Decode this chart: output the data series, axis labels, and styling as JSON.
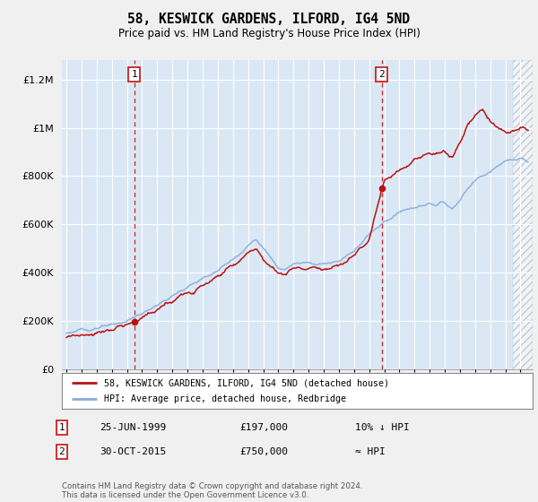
{
  "title": "58, KESWICK GARDENS, ILFORD, IG4 5ND",
  "subtitle": "Price paid vs. HM Land Registry's House Price Index (HPI)",
  "ytick_values": [
    0,
    200000,
    400000,
    600000,
    800000,
    1000000,
    1200000
  ],
  "ylim": [
    0,
    1280000
  ],
  "xlim_start": 1994.7,
  "xlim_end": 2025.8,
  "background_color": "#dae8f5",
  "fig_bg_color": "#f0f0f0",
  "grid_color": "#ffffff",
  "hpi_color": "#88aadd",
  "price_color": "#bb1111",
  "marker1_date": 1999.48,
  "marker1_price": 197000,
  "marker2_date": 2015.83,
  "marker2_price": 750000,
  "legend_label1": "58, KESWICK GARDENS, ILFORD, IG4 5ND (detached house)",
  "legend_label2": "HPI: Average price, detached house, Redbridge",
  "annotation1_label": "25-JUN-1999",
  "annotation1_price": "£197,000",
  "annotation1_rel": "10% ↓ HPI",
  "annotation2_label": "30-OCT-2015",
  "annotation2_price": "£750,000",
  "annotation2_rel": "≈ HPI",
  "footer": "Contains HM Land Registry data © Crown copyright and database right 2024.\nThis data is licensed under the Open Government Licence v3.0."
}
